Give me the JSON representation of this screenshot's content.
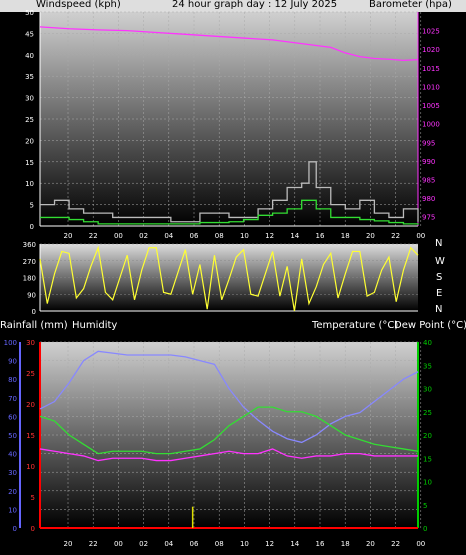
{
  "header": {
    "left": "Windspeed (kph)",
    "center": "24 hour graph day : 12 July 2025",
    "right": "Barometer (hpa)"
  },
  "middle_header": {
    "left1": "Rainfall (mm)",
    "left2": "Humidity",
    "right1": "Temperature (°C)",
    "right2": "Dew Point (°C)"
  },
  "compass": [
    "N",
    "W",
    "S",
    "E",
    "N"
  ],
  "colors": {
    "wind": "#ffffff",
    "gust": "#bbbbbb",
    "wind_avg": "#33dd33",
    "barometer": "#ff33ff",
    "direction": "#ffff33",
    "humidity": "#8888ff",
    "temperature": "#33dd33",
    "dewpoint": "#ff33ff",
    "rain": "#dddd00",
    "rain_axis": "#ff0000",
    "humidity_axis": "#6666ff",
    "temp_axis": "#00cc00"
  },
  "chart_data": [
    {
      "type": "line",
      "name": "wind_barometer",
      "x_ticks": [
        "20",
        "22",
        "00",
        "02",
        "04",
        "06",
        "08",
        "10",
        "12",
        "14",
        "16",
        "18",
        "20",
        "22",
        "00"
      ],
      "y_left": {
        "ticks": [
          "0",
          "5",
          "10",
          "15",
          "20",
          "25",
          "30",
          "35",
          "40",
          "45",
          "50"
        ],
        "range": [
          0,
          50
        ]
      },
      "y_right": {
        "ticks": [
          "975",
          "980",
          "985",
          "990",
          "995",
          "1000",
          "1005",
          "1010",
          "1015",
          "1020",
          "1025"
        ],
        "range": [
          972.5,
          1030
        ]
      },
      "series": [
        {
          "role": "barometer",
          "hours": [
            0,
            2,
            4,
            6,
            8,
            10,
            12,
            14,
            16,
            18,
            20,
            21,
            22,
            23,
            24,
            25,
            26
          ],
          "values": [
            1026,
            1025.5,
            1025.2,
            1025,
            1024.5,
            1024,
            1023.5,
            1023,
            1022.5,
            1021.5,
            1020.5,
            1019,
            1018,
            1017.5,
            1017.3,
            1017,
            1017.2
          ]
        },
        {
          "role": "wind_avg",
          "hours": [
            0,
            2,
            3,
            4,
            5,
            6,
            7,
            8,
            9,
            10,
            11,
            12,
            13,
            14,
            15,
            16,
            17,
            18,
            19,
            20,
            21,
            22,
            23,
            24,
            25,
            26
          ],
          "values": [
            2,
            1.5,
            1,
            0.5,
            0.5,
            0.5,
            0.5,
            0.5,
            0.5,
            0.5,
            0.8,
            0.8,
            1,
            1.5,
            2.5,
            3,
            4,
            6,
            4,
            2,
            2,
            1.5,
            1.2,
            0.8,
            0.5,
            0.3
          ]
        },
        {
          "role": "gust",
          "hours": [
            0,
            1,
            2,
            3,
            5,
            7,
            9,
            11,
            13,
            15,
            16,
            17,
            18,
            18.5,
            19,
            20,
            21,
            22,
            23,
            24,
            25,
            26
          ],
          "values": [
            5,
            6,
            4,
            3,
            2,
            2,
            1,
            3,
            2,
            4,
            6,
            9,
            10,
            15,
            9,
            5,
            4,
            6,
            3,
            2,
            4,
            1
          ]
        }
      ]
    },
    {
      "type": "scatter",
      "name": "wind_direction",
      "y_left": {
        "ticks": [
          "0",
          "90",
          "180",
          "270",
          "360"
        ],
        "range": [
          0,
          360
        ]
      },
      "series": [
        {
          "role": "direction",
          "hours": [
            0,
            1,
            2,
            3,
            4,
            5,
            6,
            7,
            8,
            9,
            10,
            11,
            12,
            13,
            14,
            15,
            16,
            17,
            18,
            19,
            20,
            21,
            22,
            23,
            24,
            25,
            26
          ],
          "values": [
            280,
            200,
            310,
            120,
            340,
            60,
            300,
            220,
            340,
            90,
            330,
            250,
            300,
            170,
            330,
            80,
            320,
            240,
            280,
            130,
            310,
            200,
            320,
            100,
            290,
            220,
            300
          ]
        }
      ]
    },
    {
      "type": "line",
      "name": "temp_humidity",
      "x_ticks": [
        "20",
        "22",
        "00",
        "02",
        "04",
        "06",
        "08",
        "10",
        "12",
        "14",
        "16",
        "18",
        "20",
        "22",
        "00"
      ],
      "y_left_humidity": {
        "ticks": [
          "0",
          "10",
          "20",
          "30",
          "40",
          "50",
          "60",
          "70",
          "80",
          "90",
          "100"
        ],
        "range": [
          0,
          100
        ]
      },
      "y_left_rain": {
        "ticks": [
          "0",
          "5",
          "10",
          "15",
          "20",
          "25",
          "30"
        ],
        "range": [
          0,
          30
        ]
      },
      "y_right": {
        "ticks": [
          "0",
          "5",
          "10",
          "15",
          "20",
          "25",
          "30",
          "35",
          "40"
        ],
        "range": [
          0,
          40
        ]
      },
      "series": [
        {
          "role": "humidity",
          "hours": [
            0,
            1,
            2,
            3,
            4,
            5,
            6,
            7,
            8,
            9,
            10,
            11,
            12,
            13,
            14,
            15,
            16,
            17,
            18,
            19,
            20,
            21,
            22,
            23,
            24,
            25,
            26
          ],
          "values": [
            64,
            68,
            78,
            90,
            95,
            94,
            93,
            93,
            93,
            93,
            92,
            90,
            88,
            75,
            65,
            58,
            52,
            48,
            46,
            50,
            56,
            60,
            62,
            68,
            74,
            80,
            84
          ]
        },
        {
          "role": "temperature",
          "hours": [
            0,
            1,
            2,
            3,
            4,
            5,
            6,
            7,
            8,
            9,
            10,
            11,
            12,
            13,
            14,
            15,
            16,
            17,
            18,
            19,
            20,
            21,
            22,
            23,
            24,
            25,
            26
          ],
          "values": [
            24,
            23,
            20,
            18,
            16,
            16.5,
            16.5,
            16.5,
            16,
            16,
            16.5,
            17,
            19,
            22,
            24,
            26,
            26,
            25,
            25,
            24,
            22,
            20,
            19,
            18,
            17.5,
            17,
            16.5
          ]
        },
        {
          "role": "dewpoint",
          "hours": [
            0,
            1,
            2,
            3,
            4,
            5,
            6,
            7,
            8,
            9,
            10,
            11,
            12,
            13,
            14,
            15,
            16,
            17,
            18,
            19,
            20,
            21,
            22,
            23,
            24,
            25,
            26
          ],
          "values": [
            17,
            16.5,
            16,
            15.5,
            14.5,
            15,
            15,
            15,
            14.5,
            14.5,
            15,
            15.5,
            16,
            16.5,
            16,
            16,
            17,
            15.5,
            15,
            15.5,
            15.5,
            16,
            16,
            15.5,
            15.5,
            15.5,
            15.5
          ]
        },
        {
          "role": "rain",
          "hours": [
            10.5
          ],
          "values": [
            1.5
          ]
        }
      ]
    }
  ]
}
